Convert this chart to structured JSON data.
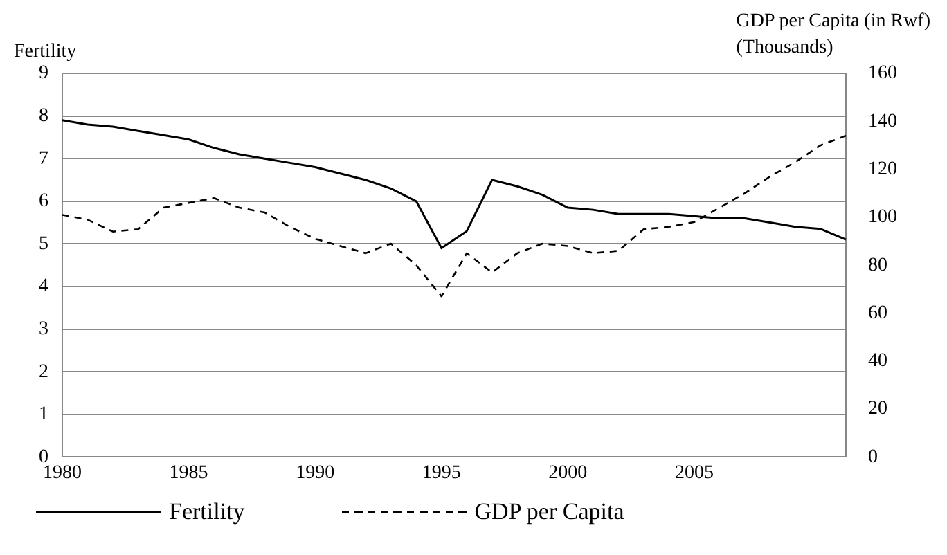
{
  "chart_data": {
    "type": "line",
    "ylabel": "Fertility",
    "y2label": "GDP per Capita (in Rwf)\n(Thousands)",
    "categories": [
      "1980",
      null,
      null,
      null,
      null,
      "1985",
      null,
      null,
      null,
      null,
      "1990",
      null,
      null,
      null,
      null,
      "1995",
      null,
      null,
      null,
      null,
      "2000",
      null,
      null,
      null,
      null,
      "2005",
      null,
      null,
      null,
      null,
      null,
      null
    ],
    "series": [
      {
        "name": "Fertility",
        "color": "#000000",
        "line_style": "solid",
        "values": [
          7.9,
          7.8,
          7.75,
          7.65,
          7.55,
          7.45,
          7.25,
          7.1,
          7.0,
          6.9,
          6.8,
          6.65,
          6.5,
          6.3,
          6.0,
          4.9,
          5.3,
          6.5,
          6.35,
          6.15,
          5.85,
          5.8,
          5.7,
          5.7,
          5.7,
          5.65,
          5.6,
          5.6,
          5.5,
          5.4,
          5.35,
          5.1
        ]
      },
      {
        "name": "GDP per Capita",
        "color": "#000000",
        "line_style": "dashed",
        "axis": "y2",
        "values": [
          101,
          99,
          94,
          95,
          104,
          106,
          108,
          104,
          102,
          96,
          91,
          88,
          85,
          89,
          80,
          67,
          85,
          77,
          85,
          89,
          88,
          85,
          86,
          95,
          96,
          98,
          104,
          110,
          117,
          123,
          130,
          134
        ]
      }
    ],
    "ylim": [
      0,
      9
    ],
    "yticks": [
      0,
      1,
      2,
      3,
      4,
      5,
      6,
      7,
      8,
      9
    ],
    "y2lim": [
      0,
      160
    ],
    "y2ticks": [
      0,
      20,
      40,
      60,
      80,
      100,
      120,
      140,
      160
    ],
    "grid": "y",
    "legend": "bottom",
    "marker": "none"
  }
}
